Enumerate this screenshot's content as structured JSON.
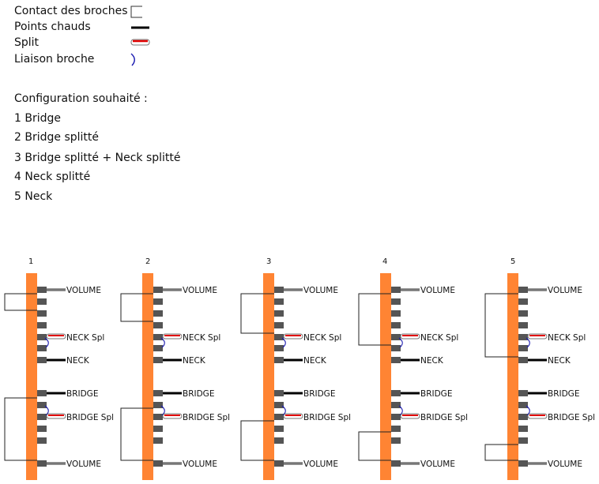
{
  "legend": {
    "contact": "Contact des broches",
    "hot": "Points chauds",
    "split": "Split",
    "link": "Liaison broche"
  },
  "config": {
    "heading": "Configuration souhaité :",
    "items": [
      "1 Bridge",
      "2 Bridge splitté",
      "3 Bridge splitté + Neck splitté",
      "4 Neck splitté",
      "5 Neck"
    ]
  },
  "switch": {
    "positions": [
      "1",
      "2",
      "3",
      "4",
      "5"
    ],
    "labels": {
      "volume": "VOLUME",
      "neck_split": "NECK Spl",
      "neck": "NECK",
      "bridge": "BRIDGE",
      "bridge_split": "BRIDGE Spl"
    }
  },
  "colors": {
    "bar": "#FF8433",
    "pin": "#555555",
    "hot": "#000000",
    "split_red": "#E00000",
    "volume_wire": "#777777",
    "link": "#1A1AB0"
  }
}
